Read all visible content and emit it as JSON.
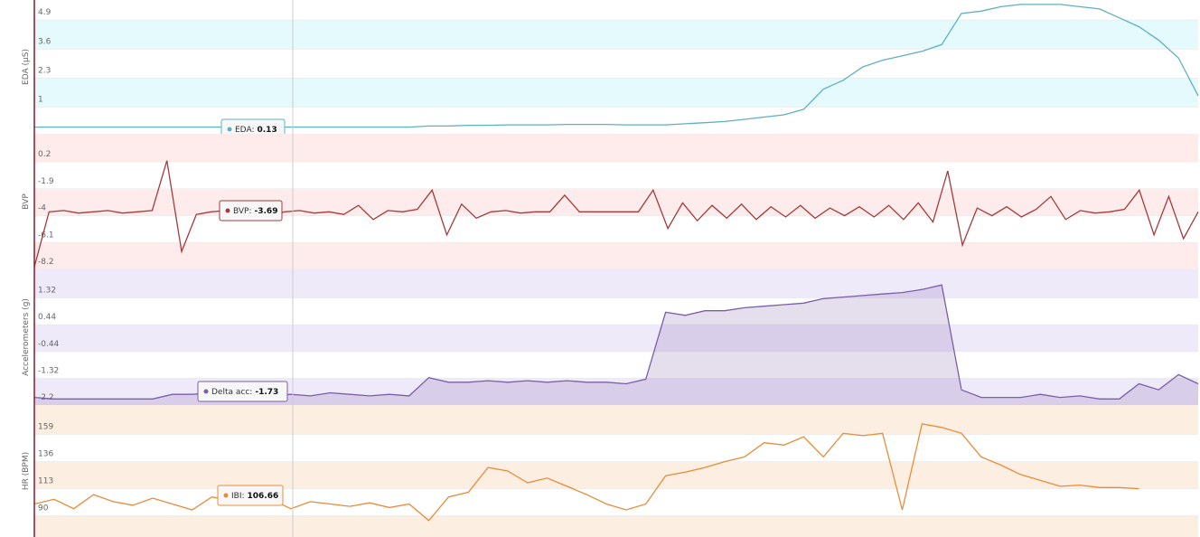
{
  "chart_data": [
    {
      "type": "line",
      "y_label": "EDA (μS)",
      "color": "#5fb0c0",
      "band_color": "#e4fafc",
      "ylim": [
        -0.2,
        5.8
      ],
      "yticks": [
        4.9,
        3.6,
        2.3,
        1
      ],
      "values": [
        0.1,
        0.1,
        0.1,
        0.1,
        0.1,
        0.1,
        0.1,
        0.1,
        0.1,
        0.1,
        0.1,
        0.1,
        0.1,
        0.1,
        0.1,
        0.1,
        0.1,
        0.1,
        0.1,
        0.1,
        0.15,
        0.15,
        0.18,
        0.18,
        0.2,
        0.2,
        0.2,
        0.22,
        0.22,
        0.22,
        0.2,
        0.2,
        0.2,
        0.25,
        0.3,
        0.35,
        0.45,
        0.55,
        0.65,
        0.9,
        1.8,
        2.2,
        2.8,
        3.1,
        3.3,
        3.5,
        3.8,
        5.2,
        5.3,
        5.5,
        5.6,
        5.6,
        5.6,
        5.5,
        5.4,
        5.0,
        4.6,
        4.0,
        3.2,
        1.5
      ],
      "tooltip": {
        "label": "EDA:",
        "value": 0.13
      }
    },
    {
      "type": "line",
      "y_label": "BVP",
      "color": "#a53a3a",
      "band_color": "#fdeceb",
      "ylim": [
        -8.2,
        2.4
      ],
      "yticks": [
        0.2,
        -1.9,
        -4,
        -6.1,
        -8.2
      ],
      "values": [
        -8.0,
        -3.7,
        -3.6,
        -3.8,
        -3.7,
        -3.6,
        -3.8,
        -3.7,
        -3.6,
        0.3,
        -6.8,
        -3.9,
        -3.7,
        -3.6,
        -3.8,
        -3.5,
        -3.9,
        -3.7,
        -3.6,
        -3.8,
        -3.7,
        -3.9,
        -3.2,
        -4.3,
        -3.6,
        -3.7,
        -3.5,
        -2.0,
        -5.5,
        -3.1,
        -4.2,
        -3.7,
        -3.6,
        -3.8,
        -3.7,
        -3.7,
        -2.4,
        -3.7,
        -3.7,
        -3.7,
        -3.7,
        -3.7,
        -2.0,
        -5.0,
        -3.0,
        -4.4,
        -3.2,
        -4.2,
        -3.1,
        -4.3,
        -3.3,
        -4.1,
        -3.2,
        -4.2,
        -3.4,
        -4.0,
        -3.3,
        -4.1,
        -3.2,
        -4.3,
        -3.0,
        -4.5,
        -0.5,
        -6.3,
        -3.4,
        -4.0,
        -3.3,
        -4.1,
        -3.5,
        -2.5,
        -4.3,
        -3.6,
        -3.8,
        -3.7,
        -3.5,
        -2.0,
        -5.5,
        -2.5,
        -5.8,
        -3.7
      ],
      "tooltip": {
        "label": "BVP:",
        "value": -3.69
      }
    },
    {
      "type": "area",
      "y_label": "Accelerometers (g)",
      "color": "#7b5fa6",
      "band_color": "#efeafa",
      "ylim": [
        -2.2,
        2.26
      ],
      "yticks": [
        1.32,
        0.44,
        -0.44,
        -1.32,
        -2.2
      ],
      "values": [
        -1.95,
        -2.0,
        -2.0,
        -2.0,
        -2.0,
        -2.0,
        -2.0,
        -1.85,
        -1.85,
        -1.8,
        -1.85,
        -1.85,
        -1.9,
        -1.85,
        -1.9,
        -1.8,
        -1.85,
        -1.9,
        -1.85,
        -1.9,
        -1.3,
        -1.45,
        -1.45,
        -1.4,
        -1.45,
        -1.4,
        -1.45,
        -1.4,
        -1.45,
        -1.45,
        -1.5,
        -1.35,
        0.85,
        0.75,
        0.9,
        0.9,
        1.0,
        1.05,
        1.1,
        1.15,
        1.3,
        1.35,
        1.4,
        1.45,
        1.5,
        1.6,
        1.75,
        -1.7,
        -1.95,
        -1.95,
        -1.95,
        -1.85,
        -1.95,
        -1.9,
        -2.0,
        -2.0,
        -1.5,
        -1.7,
        -1.2,
        -1.5
      ],
      "tooltip": {
        "label": "Delta acc:",
        "value": -1.73
      }
    },
    {
      "type": "line",
      "y_label": "HR (BPM)",
      "color": "#e88c3a",
      "band_color": "#fdeee2",
      "ylim": [
        72,
        184
      ],
      "yticks": [
        159,
        136,
        113,
        90
      ],
      "values": [
        100,
        104,
        96,
        108,
        102,
        99,
        105,
        100,
        95,
        106,
        103,
        99,
        104,
        96,
        102,
        100,
        98,
        101,
        97,
        100,
        86,
        106,
        110,
        131,
        128,
        118,
        122,
        115,
        108,
        100,
        95,
        100,
        124,
        127,
        131,
        136,
        140,
        152,
        150,
        157,
        140,
        160,
        158,
        160,
        95,
        168,
        165,
        160,
        140,
        133,
        125,
        120,
        115,
        116,
        114,
        114,
        113,
        null,
        null,
        null
      ],
      "tooltip": {
        "label": "IBI:",
        "value": 106.66
      }
    }
  ]
}
